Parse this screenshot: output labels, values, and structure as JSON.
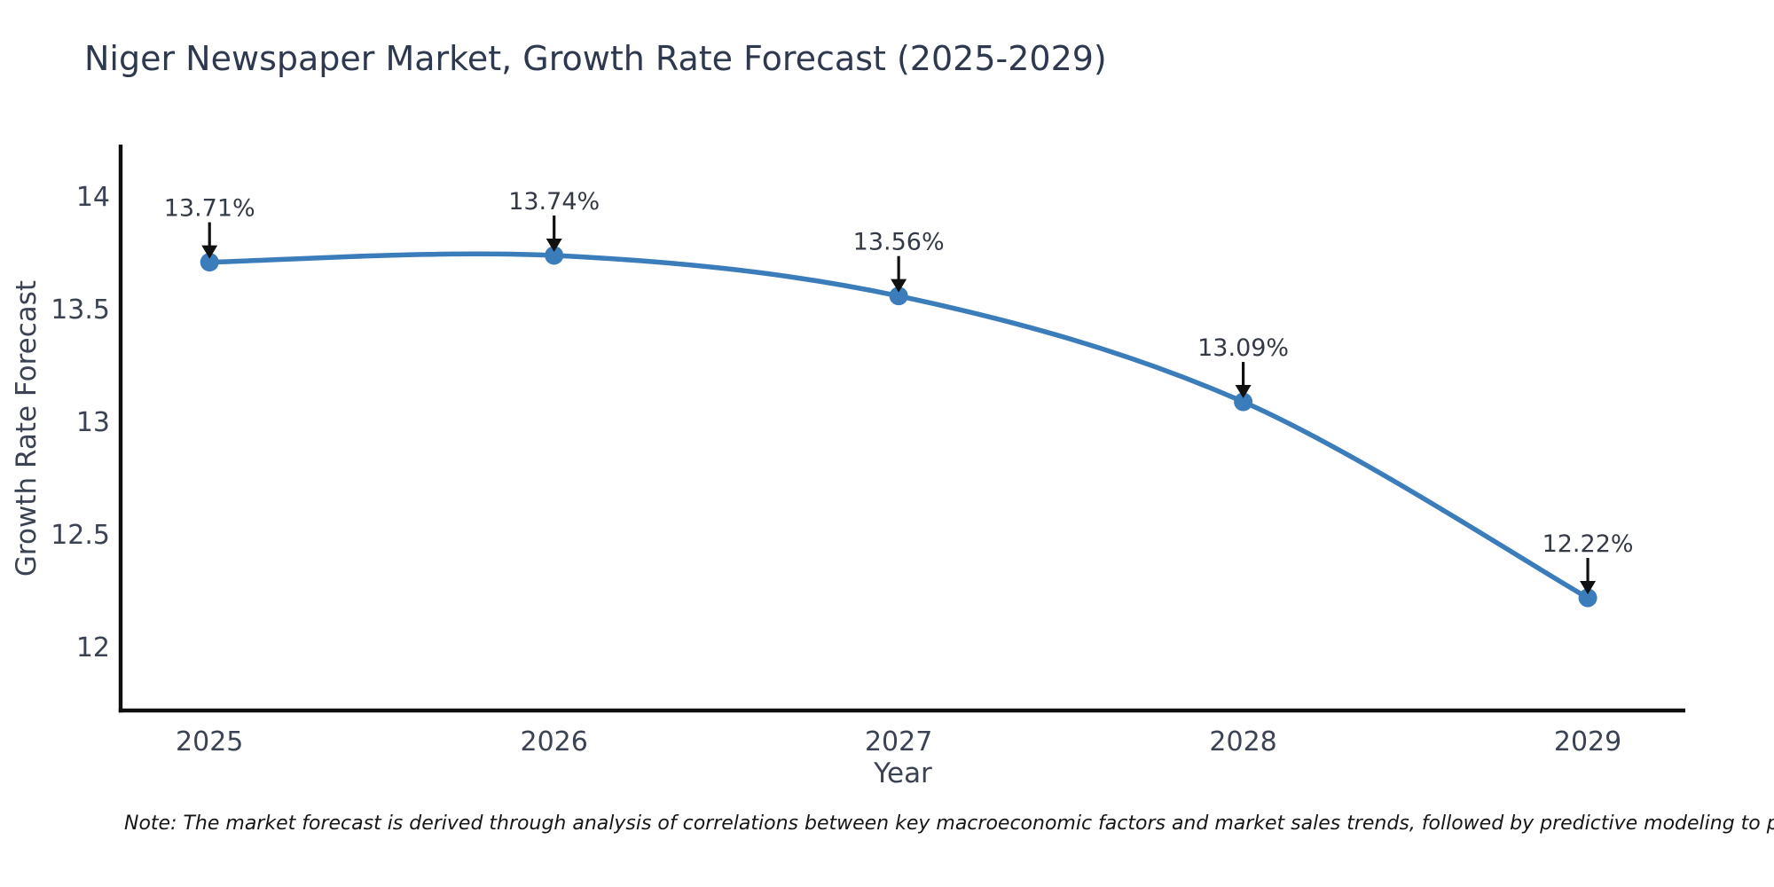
{
  "chart_data": {
    "type": "line",
    "title": "Niger Newspaper Market, Growth Rate Forecast (2025-2029)",
    "xlabel": "Year",
    "ylabel": "Growth Rate Forecast",
    "x": [
      2025,
      2026,
      2027,
      2028,
      2029
    ],
    "values": [
      13.71,
      13.74,
      13.56,
      13.09,
      12.22
    ],
    "point_labels": [
      "13.71%",
      "13.74%",
      "13.56%",
      "13.09%",
      "12.22%"
    ],
    "xticks": [
      2025,
      2026,
      2027,
      2028,
      2029
    ],
    "xtick_labels": [
      "2025",
      "2026",
      "2027",
      "2028",
      "2029"
    ],
    "yticks": [
      12,
      12.5,
      13,
      13.5,
      14
    ],
    "ytick_labels": [
      "12",
      "12.5",
      "13",
      "13.5",
      "14"
    ],
    "xlim": [
      2024.742,
      2029.283
    ],
    "ylim": [
      11.72,
      14.232
    ],
    "grid": false,
    "legend": "none",
    "line_color": "#3b7cba",
    "marker_color": "#3b7cba",
    "arrow_color": "#111111",
    "spine_color": "#0f0f0f",
    "note": "Note: The market forecast is derived through analysis of correlations between key macroeconomic factors and market sales trends, followed by predictive modeling to project future sal"
  }
}
